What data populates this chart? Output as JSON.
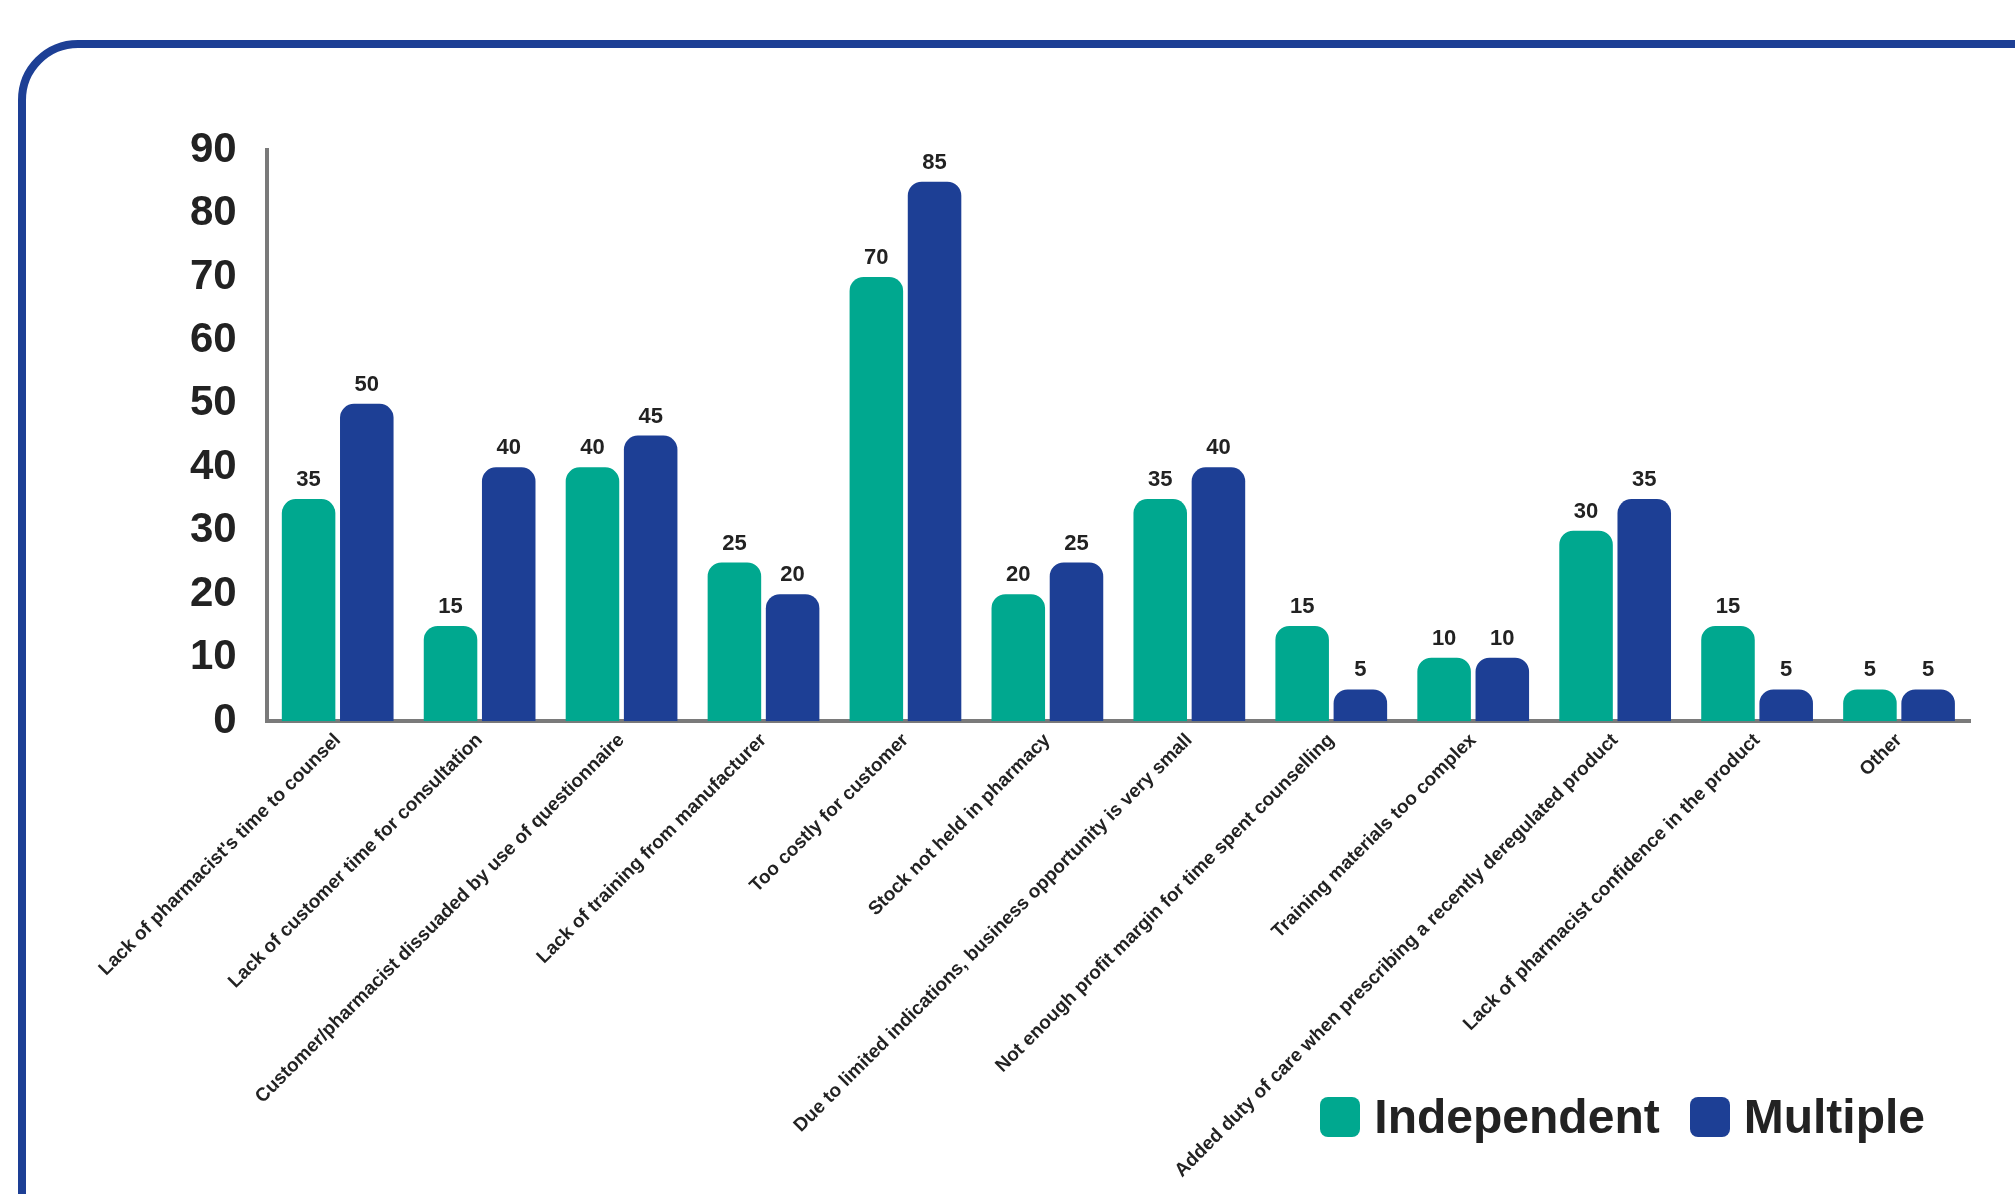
{
  "chart_data": {
    "type": "bar",
    "categories": [
      "Lack of pharmacist's time to counsel",
      "Lack of customer time for consultation",
      "Customer/pharmacist dissuaded by use of questionnaire",
      "Lack of training from manufacturer",
      "Too costly for customer",
      "Stock not held in pharmacy",
      "Due to limited indications, business opportunity is very small",
      "Not enough profit margin for time spent counselling",
      "Training materials too complex",
      "Added duty of care when prescribing a recently deregulated product",
      "Lack of pharmacist confidence in the product",
      "Other"
    ],
    "series": [
      {
        "name": "Independent",
        "color": "#00a88f",
        "values": [
          35,
          15,
          40,
          25,
          70,
          20,
          35,
          15,
          10,
          30,
          15,
          5
        ]
      },
      {
        "name": "Multiple",
        "color": "#1d3f95",
        "values": [
          50,
          40,
          45,
          20,
          85,
          25,
          40,
          5,
          10,
          35,
          5,
          5
        ]
      }
    ],
    "ylim": [
      0,
      90
    ],
    "yticks": [
      0,
      10,
      20,
      30,
      40,
      50,
      60,
      70,
      80,
      90
    ],
    "grid": false,
    "legend": "bottom right",
    "data_labels": true
  }
}
